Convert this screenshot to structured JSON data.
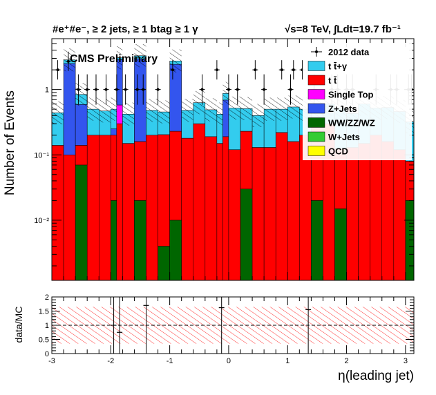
{
  "chart_data": [
    {
      "type": "bar",
      "stacked": true,
      "title_left": "#e⁺#e⁻, ≥ 2 jets, ≥ 1 btag ≥ 1 γ",
      "title_right": "√s=8 TeV,  ∫Ldt=19.7 fb⁻¹",
      "label": "CMS Preliminary",
      "ylabel": "Number of Events",
      "xlim": [
        -3,
        3.142
      ],
      "ylim": [
        0.0012,
        6
      ],
      "yscale": "log",
      "ytick_labels": [
        "10⁻²",
        "10⁻¹",
        "1"
      ],
      "ytick_values": [
        0.01,
        0.1,
        1
      ],
      "legend_position": "top-right",
      "legend": [
        {
          "label": "2012 data",
          "marker": "data"
        },
        {
          "label": "t t̄+γ",
          "color": "#33ccee"
        },
        {
          "label": "t t̄",
          "color": "#ff0000"
        },
        {
          "label": "Single Top",
          "color": "#ff00ff"
        },
        {
          "label": "Z+Jets",
          "color": "#3355ee"
        },
        {
          "label": "WW/ZZ/WZ",
          "color": "#006600"
        },
        {
          "label": "W+Jets",
          "color": "#33cc33"
        },
        {
          "label": "QCD",
          "color": "#ffff00"
        }
      ],
      "bin_edges": [
        -3.0,
        -2.8,
        -2.6,
        -2.4,
        -2.2,
        -2.0,
        -1.9,
        -1.8,
        -1.6,
        -1.4,
        -1.2,
        -1.0,
        -0.8,
        -0.6,
        -0.4,
        -0.2,
        -0.1,
        0.0,
        0.2,
        0.4,
        0.6,
        0.8,
        1.0,
        1.2,
        1.4,
        1.6,
        1.8,
        2.0,
        2.2,
        2.4,
        2.6,
        2.8,
        3.0,
        3.142
      ],
      "series": [
        {
          "name": "WW/ZZ/WZ",
          "color": "#006600",
          "values": [
            0,
            0,
            0.07,
            0,
            0,
            0.02,
            0,
            0,
            0.02,
            0,
            0.004,
            0.01,
            0,
            0,
            0,
            0,
            0,
            0,
            0.03,
            0,
            0,
            0,
            0,
            0,
            0.02,
            0,
            0.015,
            0,
            0,
            0,
            0,
            0,
            0.02
          ]
        },
        {
          "name": "t t̄",
          "color": "#ff0000",
          "values": [
            0.14,
            0.1,
            0.07,
            0.2,
            0.2,
            0.18,
            0.3,
            0.15,
            0.14,
            0.2,
            0.2,
            0.22,
            0.18,
            0.3,
            0.19,
            0.15,
            0.19,
            0.12,
            0.2,
            0.13,
            0.13,
            0.22,
            0.16,
            0.2,
            0.26,
            0.3,
            0.11,
            0.13,
            0.15,
            0.2,
            0.16,
            0.12,
            0.06
          ]
        },
        {
          "name": "Single Top",
          "color": "#ff00ff",
          "values": [
            0,
            0,
            0,
            0,
            0,
            0,
            0.28,
            0,
            0,
            0,
            0,
            0,
            0,
            0,
            0,
            0,
            0,
            0,
            0,
            0,
            0,
            0,
            0,
            0,
            0,
            0,
            0,
            0,
            0,
            0,
            0,
            0,
            0
          ]
        },
        {
          "name": "Z+Jets",
          "color": "#3355ee",
          "values": [
            0,
            2.4,
            0.45,
            0,
            0,
            0.05,
            2.3,
            0,
            2.8,
            0,
            0,
            2.2,
            0,
            0,
            0,
            0,
            0.5,
            0,
            0,
            0,
            0,
            0,
            0,
            0,
            0,
            0,
            0,
            0,
            0,
            0,
            0,
            0,
            0
          ]
        },
        {
          "name": "t t̄+γ",
          "color": "#33ccee",
          "values": [
            0.3,
            0.35,
            0.25,
            0.3,
            0.27,
            0.25,
            0.18,
            0.27,
            0.33,
            0.28,
            0.25,
            0.3,
            0.3,
            0.33,
            0.3,
            0.27,
            0.18,
            0.4,
            0.28,
            0.27,
            0.37,
            0.28,
            0.38,
            0.3,
            0.27,
            0.3,
            0.4,
            0.3,
            0.45,
            0.32,
            0.37,
            0.34,
            0.24
          ]
        }
      ],
      "data_points": [
        {
          "x": -2.9,
          "y": 2
        },
        {
          "x": -2.72,
          "y": 2.7
        },
        {
          "x": -2.55,
          "y": 1
        },
        {
          "x": -2.4,
          "y": 1
        },
        {
          "x": -2.25,
          "y": 1
        },
        {
          "x": -2.08,
          "y": 1
        },
        {
          "x": -1.9,
          "y": 1
        },
        {
          "x": -1.75,
          "y": 1
        },
        {
          "x": -1.55,
          "y": 1
        },
        {
          "x": -1.45,
          "y": 1
        },
        {
          "x": -1.2,
          "y": 1
        },
        {
          "x": -0.95,
          "y": 2
        },
        {
          "x": -0.45,
          "y": 1
        },
        {
          "x": 0.0,
          "y": 1
        },
        {
          "x": 0.15,
          "y": 1
        },
        {
          "x": -0.2,
          "y": 2
        },
        {
          "x": 0.45,
          "y": 2
        },
        {
          "x": 0.6,
          "y": 1
        },
        {
          "x": 0.9,
          "y": 2
        },
        {
          "x": 1.05,
          "y": 1
        },
        {
          "x": 1.1,
          "y": 2
        },
        {
          "x": 1.25,
          "y": 2
        },
        {
          "x": 1.45,
          "y": 1
        },
        {
          "x": 1.75,
          "y": 1
        },
        {
          "x": 1.85,
          "y": 1
        },
        {
          "x": 2.0,
          "y": 1
        },
        {
          "x": 2.1,
          "y": 1
        },
        {
          "x": 2.5,
          "y": 1
        },
        {
          "x": 2.75,
          "y": 1
        },
        {
          "x": 2.85,
          "y": 1
        },
        {
          "x": 3.05,
          "y": 1
        },
        {
          "x": 3.1,
          "y": 1
        }
      ]
    },
    {
      "type": "scatter",
      "ylabel": "data/MC",
      "xlabel": "η(leading jet)",
      "xlim": [
        -3,
        3.142
      ],
      "ylim": [
        0,
        2
      ],
      "ytick_labels": [
        "0",
        "0.5",
        "1",
        "1.5",
        "2"
      ],
      "ytick_values": [
        0,
        0.5,
        1,
        1.5,
        2
      ],
      "xtick_labels": [
        "-3",
        "-2",
        "-1",
        "0",
        "1",
        "2",
        "3"
      ],
      "xtick_values": [
        -3,
        -2,
        -1,
        0,
        1,
        2,
        3
      ],
      "reference_line": 1,
      "band": [
        0.35,
        1.65
      ],
      "points": [
        {
          "x": -1.95,
          "y": 1.0
        },
        {
          "x": -1.85,
          "y": 0.75
        },
        {
          "x": -1.4,
          "y": 1.7
        },
        {
          "x": -0.12,
          "y": 1.62
        },
        {
          "x": 1.35,
          "y": 1.55
        }
      ]
    }
  ]
}
